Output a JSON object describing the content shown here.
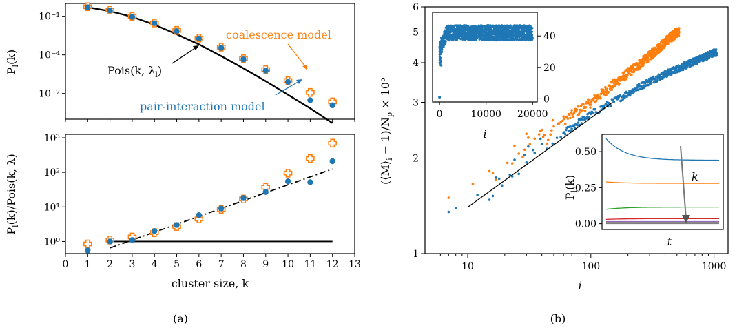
{
  "colors": {
    "blue": "#1f77b4",
    "orange": "#ff7f0e",
    "green": "#2ca02c",
    "red": "#d62728",
    "purple": "#9467bd",
    "black": "#000000",
    "gray": "#7f7f7f"
  },
  "chart_data": [
    {
      "id": "a-top",
      "type": "scatter",
      "xlabel": "",
      "ylabel": "P_l(k)",
      "ylog": true,
      "ylim_log10": [
        -9,
        0
      ],
      "xlim": [
        0,
        13
      ],
      "ytick_labels": [
        "10⁻¹",
        "10⁻⁴",
        "10⁻⁷"
      ],
      "ytick_values": [
        0.1,
        0.0001,
        1e-07
      ],
      "series": [
        {
          "name": "coalescence model",
          "marker": "plus",
          "x": [
            1,
            2,
            3,
            4,
            5,
            6,
            7,
            8,
            9,
            10,
            11,
            12
          ],
          "y": [
            0.55,
            0.3,
            0.1,
            0.03,
            0.008,
            0.002,
            0.0004,
            5e-05,
            7e-06,
            1e-06,
            1.2e-07,
            2.2e-08
          ]
        },
        {
          "name": "pair-interaction model",
          "marker": "dot",
          "x": [
            1,
            2,
            3,
            4,
            5,
            6,
            7,
            8,
            9,
            10,
            11,
            12
          ],
          "y": [
            0.5,
            0.28,
            0.09,
            0.029,
            0.007,
            0.0019,
            0.00035,
            4.5e-05,
            6e-06,
            8e-07,
            3e-08,
            1.2e-08
          ]
        },
        {
          "name": "Pois(k, λ_l)",
          "type": "line",
          "x": [
            1,
            2,
            3,
            4,
            5,
            6,
            7,
            8,
            9,
            10,
            11,
            12
          ],
          "y": [
            0.5,
            0.25,
            0.09,
            0.022,
            0.004,
            0.00065,
            8e-05,
            9e-06,
            9e-07,
            8e-08,
            7e-09,
            5e-10
          ]
        }
      ],
      "annotations": [
        "coalescence model",
        "pair-interaction model",
        "Pois(k, λ_l)"
      ]
    },
    {
      "id": "a-bottom",
      "type": "scatter",
      "xlabel": "cluster size, k",
      "ylabel": "P_l(k)/Pois(k, λ)",
      "ylog": true,
      "ylim_log10": [
        -0.35,
        3.1
      ],
      "xlim": [
        0,
        13
      ],
      "xtick_labels": [
        "0",
        "1",
        "2",
        "3",
        "4",
        "5",
        "6",
        "7",
        "8",
        "9",
        "10",
        "11",
        "12",
        "13"
      ],
      "ytick_labels": [
        "10⁰",
        "10¹",
        "10²",
        "10³"
      ],
      "ytick_values": [
        1,
        10,
        100,
        1000
      ],
      "series": [
        {
          "name": "coalescence model",
          "marker": "plus",
          "x": [
            1,
            2,
            3,
            4,
            5,
            6,
            7,
            8,
            9,
            10,
            11,
            12
          ],
          "y": [
            0.85,
            1.1,
            1.35,
            1.8,
            2.7,
            4.5,
            8.5,
            17,
            37,
            95,
            250,
            700
          ]
        },
        {
          "name": "pair-interaction model",
          "marker": "dot",
          "x": [
            1,
            2,
            3,
            4,
            5,
            6,
            7,
            8,
            9,
            10,
            11,
            12
          ],
          "y": [
            0.55,
            1.0,
            1.1,
            2.0,
            3.0,
            5.8,
            9.0,
            18,
            27,
            55,
            52,
            210
          ]
        },
        {
          "name": "fit",
          "type": "dashdot",
          "x": [
            2,
            12
          ],
          "y": [
            0.65,
            125
          ]
        },
        {
          "name": "unity",
          "type": "line",
          "x": [
            2,
            12
          ],
          "y": [
            1,
            1
          ]
        }
      ]
    },
    {
      "id": "b-main",
      "type": "scatter",
      "xlabel": "i",
      "ylabel": "(⟨M⟩_i − 1)/N_p × 10⁵",
      "xlog": true,
      "ylog": true,
      "xlim": [
        4.5,
        1300
      ],
      "ylim": [
        1,
        6
      ],
      "xtick_labels": [
        "10",
        "100",
        "1000"
      ],
      "xtick_values": [
        10,
        100,
        1000
      ],
      "ytick_labels": [
        "1",
        "2",
        "3",
        "4",
        "5",
        "6"
      ],
      "ytick_values": [
        1,
        2,
        3,
        4,
        5,
        6
      ],
      "series": [
        {
          "name": "pair-interaction model",
          "trend": {
            "x": [
              6,
              10,
              30,
              100,
              300,
              1000
            ],
            "y": [
              1.25,
              1.35,
              2.0,
              2.75,
              3.5,
              4.3
            ]
          }
        },
        {
          "name": "coalescence model",
          "trend": {
            "x": [
              6,
              10,
              30,
              100,
              300,
              500
            ],
            "y": [
              1.45,
              1.5,
              2.2,
              3.0,
              4.2,
              5.0
            ]
          }
        },
        {
          "name": "fit",
          "type": "line",
          "x": [
            10,
            150
          ],
          "y": [
            1.4,
            3.0
          ]
        }
      ],
      "sublabel": "(b)"
    },
    {
      "id": "b-inset-top",
      "type": "scatter",
      "xlabel": "i",
      "xlim": [
        -1500,
        21000
      ],
      "ylim": [
        -2,
        55
      ],
      "xtick_labels": [
        "0",
        "10000",
        "20000"
      ],
      "xtick_values": [
        0,
        10000,
        20000
      ],
      "ytick_labels": [
        "0",
        "20",
        "40"
      ],
      "ytick_values": [
        0,
        20,
        40
      ],
      "series": [
        {
          "name": "pair-interaction model",
          "plateau": 42,
          "spread": 6
        }
      ]
    },
    {
      "id": "b-inset-bottom",
      "type": "line",
      "xlabel": "t",
      "ylabel": "P_l(k)",
      "ylim": [
        -0.04,
        0.62
      ],
      "ytick_labels": [
        "0.00",
        "0.25",
        "0.50"
      ],
      "ytick_values": [
        0,
        0.25,
        0.5
      ],
      "series": [
        {
          "color": "blue",
          "y_start": 0.59,
          "y_end": 0.44
        },
        {
          "color": "orange",
          "y_start": 0.29,
          "y_end": 0.28
        },
        {
          "color": "green",
          "y_start": 0.1,
          "y_end": 0.115
        },
        {
          "color": "red",
          "y_start": 0.03,
          "y_end": 0.035
        },
        {
          "color": "purple",
          "y_start": 0.015,
          "y_end": 0.015
        },
        {
          "color": "gray",
          "y_start": 0.005,
          "y_end": 0.005
        }
      ],
      "annotation": "k"
    }
  ],
  "labels": {
    "a_sub": "(a)",
    "b_sub": "(b)",
    "coalescence": "coalescence model",
    "pair": "pair-interaction model",
    "pois": "Pois(k, λ_l)"
  }
}
